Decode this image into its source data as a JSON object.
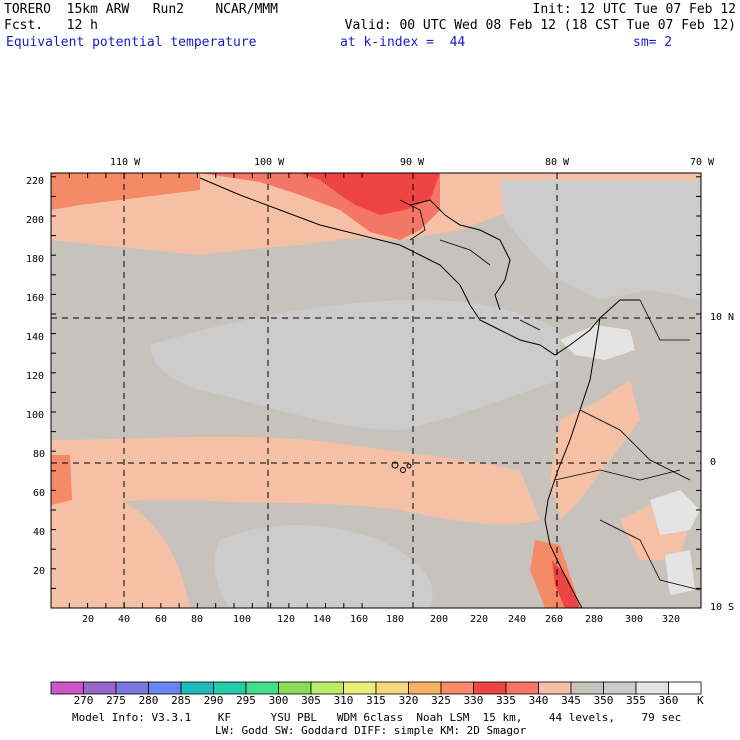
{
  "header": {
    "model": "TORERO  15km ARW   Run2    NCAR/MMM",
    "init": "Init: 12 UTC Tue 07 Feb 12",
    "fcst": "Fcst.   12 h",
    "valid": "Valid: 00 UTC Wed 08 Feb 12 (18 CST Tue 07 Feb 12)",
    "field": "Equivalent potential temperature",
    "level": "at k-index =  44",
    "smooth": "sm= 2"
  },
  "map": {
    "top_lon_labels": [
      "110 W",
      "100 W",
      "90 W",
      "80 W",
      "70 W"
    ],
    "right_lat_labels": [
      "10 N",
      "0",
      "10 S"
    ],
    "y_grid_labels": [
      "220",
      "200",
      "180",
      "160",
      "140",
      "120",
      "100",
      "80",
      "60",
      "40",
      "20"
    ],
    "x_grid_labels": [
      "20",
      "40",
      "60",
      "80",
      "100",
      "120",
      "140",
      "160",
      "180",
      "200",
      "220",
      "240",
      "260",
      "280",
      "300",
      "320"
    ]
  },
  "colorbar": {
    "labels": [
      "270",
      "275",
      "280",
      "285",
      "290",
      "295",
      "300",
      "305",
      "310",
      "315",
      "320",
      "325",
      "330",
      "335",
      "340",
      "345",
      "350",
      "355",
      "360"
    ],
    "unit": "K",
    "colors": [
      "#cc55cc",
      "#9966cc",
      "#7777dd",
      "#6688ee",
      "#22bbbb",
      "#22ccaa",
      "#44dd88",
      "#88dd55",
      "#bbee66",
      "#eeee77",
      "#f8d877",
      "#f8b066",
      "#f48a66",
      "#ee4444",
      "#f47766",
      "#f5c0a5",
      "#c8c2bd",
      "#cccccc",
      "#e4e4e4",
      "#ffffff"
    ]
  },
  "footer": {
    "line1": "Model Info: V3.3.1    KF      YSU PBL   WDM 6class  Noah LSM  15 km,    44 levels,    79 sec",
    "line2": "LW: Godd SW: Goddard DIFF: simple KM: 2D Smagor"
  }
}
